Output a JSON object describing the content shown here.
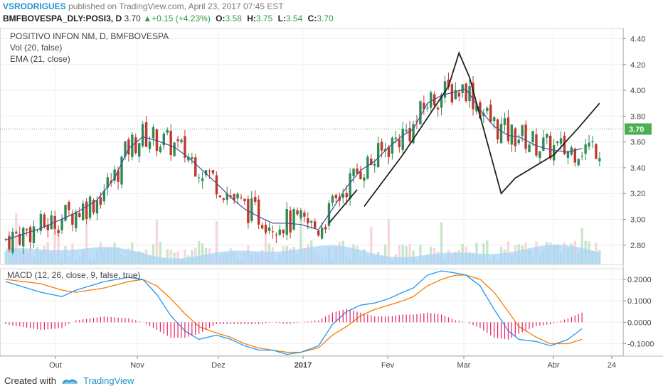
{
  "header": {
    "user": "VSRODRIGUES",
    "published_text": "published on TradingView.com, April 23, 2017 07:45 EST",
    "symbol": "BMFBOVESPA_DLY:POSI3, D",
    "last": "3.70",
    "change": "+0.15 (+4.23%)",
    "open_label": "O:",
    "open": "3.58",
    "high_label": "H:",
    "high": "3.75",
    "low_label": "L:",
    "low": "3.54",
    "close_label": "C:",
    "close": "3.70"
  },
  "legend": {
    "title": "POSITIVO INFON     NM, D, BMFBOVESPA",
    "vol": "Vol (20, false)",
    "ema": "EMA (21, close)",
    "macd": "MACD (12, 26, close, 9, false, true)"
  },
  "footer": {
    "created_with": "Created with",
    "brand": "TradingView"
  },
  "colors": {
    "up": "#2e8b57",
    "down": "#c0392b",
    "ema": "#4a4a9a",
    "macd": "#2196f3",
    "signal": "#f57c00",
    "hist": "#e91e63",
    "vol_ma": "#a9d4f5",
    "vol_up": "#c8e6c9",
    "vol_down": "#f8d7da"
  },
  "chart_data": [
    {
      "type": "candlestick",
      "title": "POSITIVO INFON NM, D, BMFBOVESPA",
      "ylim": [
        2.65,
        4.48
      ],
      "y_ticks": [
        "4.40",
        "4.20",
        "4.00",
        "3.80",
        "3.60",
        "3.40",
        "3.20",
        "3.00",
        "2.80"
      ],
      "x_ticks": [
        "Out",
        "Nov",
        "Dez",
        "2017",
        "Fev",
        "Mar",
        "Abr",
        "24"
      ],
      "last_price_label": "3.70",
      "series": [
        {
          "name": "EMA (21, close)",
          "anchors": [
            [
              0,
              2.84
            ],
            [
              10,
              2.93
            ],
            [
              20,
              3.05
            ],
            [
              26,
              3.15
            ],
            [
              31,
              3.32
            ],
            [
              35,
              3.55
            ],
            [
              39,
              3.64
            ],
            [
              43,
              3.61
            ],
            [
              48,
              3.56
            ],
            [
              52,
              3.48
            ],
            [
              56,
              3.38
            ],
            [
              60,
              3.28
            ],
            [
              64,
              3.17
            ],
            [
              68,
              3.08
            ],
            [
              72,
              3.02
            ],
            [
              76,
              2.97
            ],
            [
              80,
              2.97
            ],
            [
              84,
              2.96
            ],
            [
              89,
              2.92
            ],
            [
              93,
              3.08
            ],
            [
              97,
              3.25
            ],
            [
              101,
              3.38
            ],
            [
              105,
              3.45
            ],
            [
              109,
              3.56
            ],
            [
              113,
              3.65
            ],
            [
              116,
              3.7
            ],
            [
              120,
              3.9
            ],
            [
              124,
              3.96
            ],
            [
              128,
              3.99
            ],
            [
              131,
              4.01
            ],
            [
              135,
              3.85
            ],
            [
              139,
              3.72
            ],
            [
              143,
              3.65
            ],
            [
              146,
              3.64
            ],
            [
              151,
              3.57
            ],
            [
              155,
              3.54
            ],
            [
              160,
              3.52
            ],
            [
              164,
              3.55
            ]
          ]
        }
      ],
      "drawing_line": [
        [
          92,
          2.97
        ],
        [
          100,
          3.23
        ],
        null,
        [
          102,
          3.1
        ],
        [
          113,
          3.5
        ],
        [
          126,
          4.03
        ],
        [
          129,
          4.29
        ],
        [
          132,
          4.1
        ],
        [
          139,
          3.4
        ],
        [
          141,
          3.2
        ],
        [
          145,
          3.32
        ],
        [
          156,
          3.5
        ],
        [
          163,
          3.71
        ],
        [
          169,
          3.9
        ]
      ]
    },
    {
      "type": "line",
      "title": "MACD (12, 26, close, 9, false, true)",
      "ylim": [
        -0.155,
        0.25
      ],
      "y_ticks": [
        "0.2000",
        "0.1000",
        "0.0000",
        "-0.1000"
      ],
      "series": [
        {
          "name": "MACD",
          "anchors": [
            [
              0,
              0.19
            ],
            [
              10,
              0.14
            ],
            [
              16,
              0.12
            ],
            [
              20,
              0.15
            ],
            [
              28,
              0.19
            ],
            [
              35,
              0.21
            ],
            [
              39,
              0.2
            ],
            [
              43,
              0.13
            ],
            [
              47,
              0.03
            ],
            [
              51,
              -0.04
            ],
            [
              55,
              -0.08
            ],
            [
              60,
              -0.06
            ],
            [
              64,
              -0.08
            ],
            [
              68,
              -0.11
            ],
            [
              72,
              -0.13
            ],
            [
              76,
              -0.13
            ],
            [
              80,
              -0.15
            ],
            [
              84,
              -0.14
            ],
            [
              89,
              -0.11
            ],
            [
              93,
              -0.01
            ],
            [
              97,
              0.05
            ],
            [
              101,
              0.08
            ],
            [
              105,
              0.09
            ],
            [
              109,
              0.11
            ],
            [
              113,
              0.14
            ],
            [
              116,
              0.16
            ],
            [
              120,
              0.22
            ],
            [
              124,
              0.24
            ],
            [
              128,
              0.23
            ],
            [
              131,
              0.22
            ],
            [
              135,
              0.17
            ],
            [
              139,
              0.06
            ],
            [
              143,
              -0.04
            ],
            [
              146,
              -0.08
            ],
            [
              151,
              -0.09
            ],
            [
              155,
              -0.11
            ],
            [
              160,
              -0.08
            ],
            [
              164,
              -0.03
            ]
          ]
        },
        {
          "name": "Signal",
          "anchors": [
            [
              0,
              0.2
            ],
            [
              10,
              0.18
            ],
            [
              16,
              0.15
            ],
            [
              20,
              0.14
            ],
            [
              28,
              0.16
            ],
            [
              35,
              0.19
            ],
            [
              39,
              0.2
            ],
            [
              43,
              0.17
            ],
            [
              47,
              0.11
            ],
            [
              51,
              0.04
            ],
            [
              55,
              -0.02
            ],
            [
              60,
              -0.05
            ],
            [
              64,
              -0.07
            ],
            [
              68,
              -0.1
            ],
            [
              72,
              -0.12
            ],
            [
              76,
              -0.13
            ],
            [
              80,
              -0.14
            ],
            [
              84,
              -0.14
            ],
            [
              89,
              -0.12
            ],
            [
              93,
              -0.06
            ],
            [
              97,
              -0.02
            ],
            [
              101,
              0.03
            ],
            [
              105,
              0.06
            ],
            [
              109,
              0.08
            ],
            [
              113,
              0.1
            ],
            [
              116,
              0.12
            ],
            [
              120,
              0.17
            ],
            [
              124,
              0.2
            ],
            [
              128,
              0.22
            ],
            [
              131,
              0.22
            ],
            [
              135,
              0.2
            ],
            [
              139,
              0.14
            ],
            [
              143,
              0.05
            ],
            [
              146,
              -0.02
            ],
            [
              151,
              -0.07
            ],
            [
              155,
              -0.1
            ],
            [
              160,
              -0.1
            ],
            [
              164,
              -0.08
            ]
          ]
        }
      ]
    }
  ]
}
